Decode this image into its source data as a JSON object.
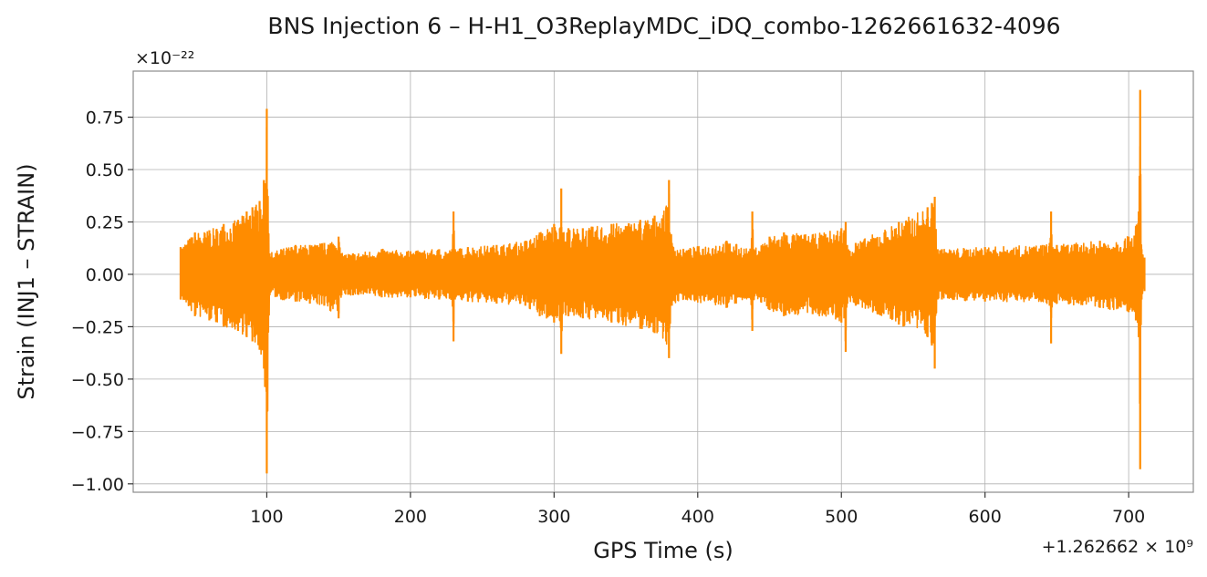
{
  "chart_data": {
    "type": "line",
    "title": "BNS Injection 6 – H-H1_O3ReplayMDC_iDQ_combo-1262661632-4096",
    "xlabel": "GPS Time (s)",
    "ylabel": "Strain (INJ1 – STRAIN)",
    "x_offset_label": "+1.262662 × 10⁹",
    "y_scale_label": "×10⁻²²",
    "x_ticks": [
      100,
      200,
      300,
      400,
      500,
      600,
      700
    ],
    "x_tick_labels": [
      "100",
      "200",
      "300",
      "400",
      "500",
      "600",
      "700"
    ],
    "y_ticks": [
      0.75,
      0.5,
      0.25,
      0.0,
      -0.25,
      -0.5,
      -0.75,
      -1.0
    ],
    "y_tick_labels": [
      "0.75",
      "0.50",
      "0.25",
      "0.00",
      "−0.25",
      "−0.50",
      "−0.75",
      "−1.00"
    ],
    "xlim": [
      7,
      745
    ],
    "ylim": [
      -1.04,
      0.97
    ],
    "grid": true,
    "series_color": "#ff8c00",
    "x_range": [
      40,
      711
    ],
    "envelope": {
      "x": [
        40,
        50,
        60,
        70,
        80,
        86,
        90,
        95,
        98,
        100,
        102,
        110,
        120,
        130,
        140,
        150,
        152,
        160,
        180,
        200,
        220,
        229,
        230,
        231,
        240,
        260,
        280,
        290,
        300,
        304,
        305,
        306,
        310,
        320,
        340,
        360,
        370,
        378,
        380,
        382,
        390,
        420,
        437,
        438,
        439,
        450,
        460,
        480,
        500,
        502,
        503,
        504,
        510,
        540,
        560,
        563,
        565,
        567,
        570,
        600,
        640,
        645,
        646,
        647,
        650,
        680,
        700,
        705,
        707,
        708,
        709,
        711
      ],
      "upper": [
        0.13,
        0.2,
        0.21,
        0.24,
        0.26,
        0.3,
        0.32,
        0.35,
        0.45,
        0.79,
        0.1,
        0.12,
        0.14,
        0.14,
        0.15,
        0.18,
        0.1,
        0.1,
        0.12,
        0.11,
        0.12,
        0.12,
        0.3,
        0.12,
        0.13,
        0.14,
        0.16,
        0.2,
        0.24,
        0.22,
        0.41,
        0.2,
        0.22,
        0.22,
        0.24,
        0.26,
        0.28,
        0.32,
        0.45,
        0.15,
        0.12,
        0.16,
        0.12,
        0.3,
        0.12,
        0.18,
        0.2,
        0.19,
        0.22,
        0.21,
        0.25,
        0.14,
        0.15,
        0.25,
        0.32,
        0.34,
        0.37,
        0.12,
        0.12,
        0.13,
        0.14,
        0.15,
        0.3,
        0.13,
        0.14,
        0.16,
        0.18,
        0.23,
        0.3,
        0.88,
        0.12,
        0.08
      ],
      "lower": [
        -0.12,
        -0.2,
        -0.22,
        -0.25,
        -0.27,
        -0.3,
        -0.32,
        -0.36,
        -0.45,
        -0.95,
        -0.1,
        -0.12,
        -0.13,
        -0.14,
        -0.15,
        -0.21,
        -0.1,
        -0.1,
        -0.11,
        -0.11,
        -0.12,
        -0.12,
        -0.32,
        -0.12,
        -0.13,
        -0.14,
        -0.15,
        -0.2,
        -0.23,
        -0.22,
        -0.38,
        -0.19,
        -0.2,
        -0.21,
        -0.23,
        -0.26,
        -0.28,
        -0.32,
        -0.4,
        -0.15,
        -0.12,
        -0.16,
        -0.12,
        -0.27,
        -0.12,
        -0.17,
        -0.2,
        -0.19,
        -0.23,
        -0.21,
        -0.37,
        -0.14,
        -0.15,
        -0.24,
        -0.3,
        -0.34,
        -0.45,
        -0.12,
        -0.12,
        -0.13,
        -0.13,
        -0.15,
        -0.33,
        -0.13,
        -0.14,
        -0.16,
        -0.18,
        -0.22,
        -0.3,
        -0.93,
        -0.12,
        -0.08
      ]
    }
  }
}
